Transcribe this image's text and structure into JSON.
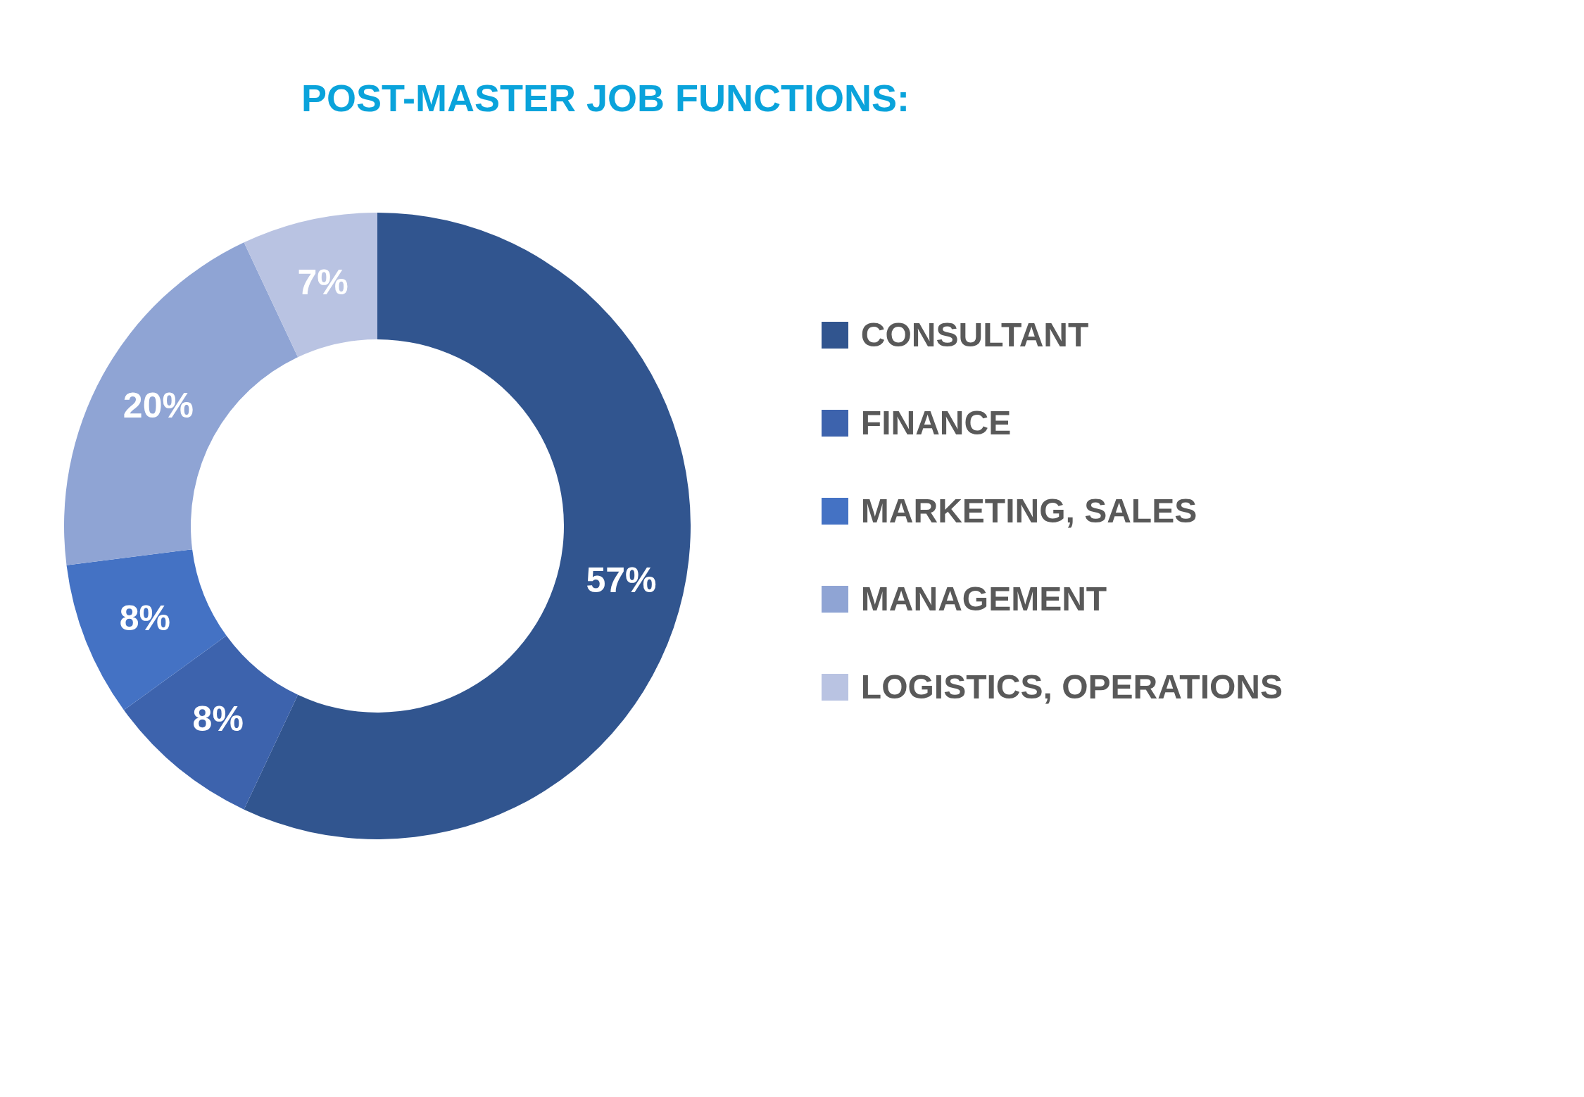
{
  "chart_data": {
    "type": "donut",
    "title": "POST-MASTER JOB FUNCTIONS:",
    "categories": [
      "CONSULTANT",
      "FINANCE",
      "MARKETING, SALES",
      "MANAGEMENT",
      "LOGISTICS, OPERATIONS"
    ],
    "values": [
      57,
      8,
      8,
      20,
      7
    ],
    "colors": [
      "#31558f",
      "#3d63ad",
      "#4472c4",
      "#8fa4d4",
      "#b9c3e2"
    ],
    "value_labels": [
      "57%",
      "8%",
      "8%",
      "20%",
      "7%"
    ],
    "legend": "right"
  }
}
